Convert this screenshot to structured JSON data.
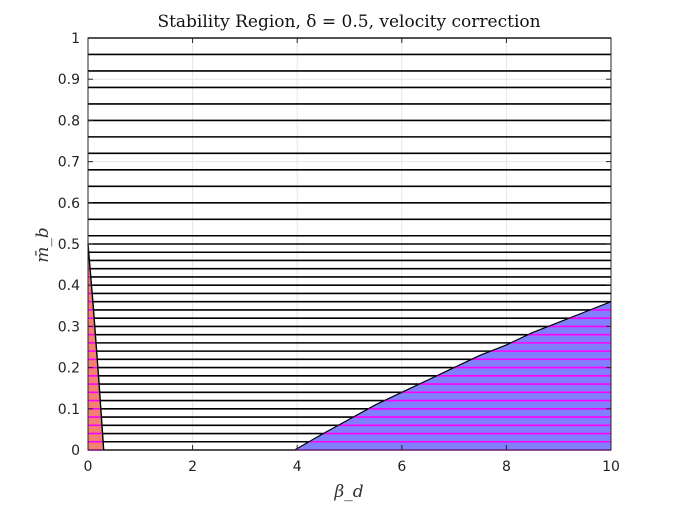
{
  "chart_data": {
    "type": "area",
    "title": "Stability Region, δ = 0.5, velocity correction",
    "xlabel": "β_d",
    "ylabel": "m̄_b",
    "xlim": [
      0,
      10
    ],
    "ylim": [
      0,
      1
    ],
    "x_ticks": [
      0,
      2,
      4,
      6,
      8,
      10
    ],
    "y_ticks": [
      0,
      0.1,
      0.2,
      0.3,
      0.4,
      0.5,
      0.6,
      0.7,
      0.8,
      0.9,
      1
    ],
    "x_tick_labels": [
      "0",
      "2",
      "4",
      "6",
      "8",
      "10"
    ],
    "y_tick_labels": [
      "0",
      "0.1",
      "0.2",
      "0.3",
      "0.4",
      "0.5",
      "0.6",
      "0.7",
      "0.8",
      "0.9",
      "1"
    ],
    "grid": true,
    "sampled_levels": [
      0,
      0.02,
      0.04,
      0.06,
      0.08,
      0.1,
      0.12,
      0.14,
      0.16,
      0.18,
      0.2,
      0.22,
      0.24,
      0.26,
      0.28,
      0.3,
      0.32,
      0.34,
      0.36,
      0.38,
      0.4,
      0.42,
      0.44,
      0.46,
      0.48,
      0.5,
      0.52,
      0.56,
      0.6,
      0.64,
      0.68,
      0.72,
      0.76,
      0.8,
      0.84,
      0.88,
      0.92,
      0.96,
      1.0
    ],
    "regions": [
      {
        "fill_color": "#f4806f",
        "boundary": [
          [
            0,
            0.5
          ],
          [
            0.1,
            0.35
          ],
          [
            0.2,
            0.18
          ],
          [
            0.3,
            0.0
          ],
          [
            0,
            0
          ]
        ]
      },
      {
        "fill_color": "#8080ff",
        "boundary": [
          [
            3.95,
            0.0
          ],
          [
            4.5,
            0.04
          ],
          [
            5.0,
            0.075
          ],
          [
            5.5,
            0.11
          ],
          [
            6.0,
            0.14
          ],
          [
            6.5,
            0.17
          ],
          [
            7.0,
            0.2
          ],
          [
            7.5,
            0.23
          ],
          [
            8.0,
            0.255
          ],
          [
            8.5,
            0.285
          ],
          [
            9.0,
            0.31
          ],
          [
            9.5,
            0.335
          ],
          [
            10.0,
            0.36
          ],
          [
            10.0,
            0.0
          ]
        ]
      }
    ],
    "colors": {
      "stable_line": "#000000",
      "unstable_line": "#ff00ff",
      "red_region": "#f4806f",
      "blue_region": "#8080ff"
    }
  }
}
